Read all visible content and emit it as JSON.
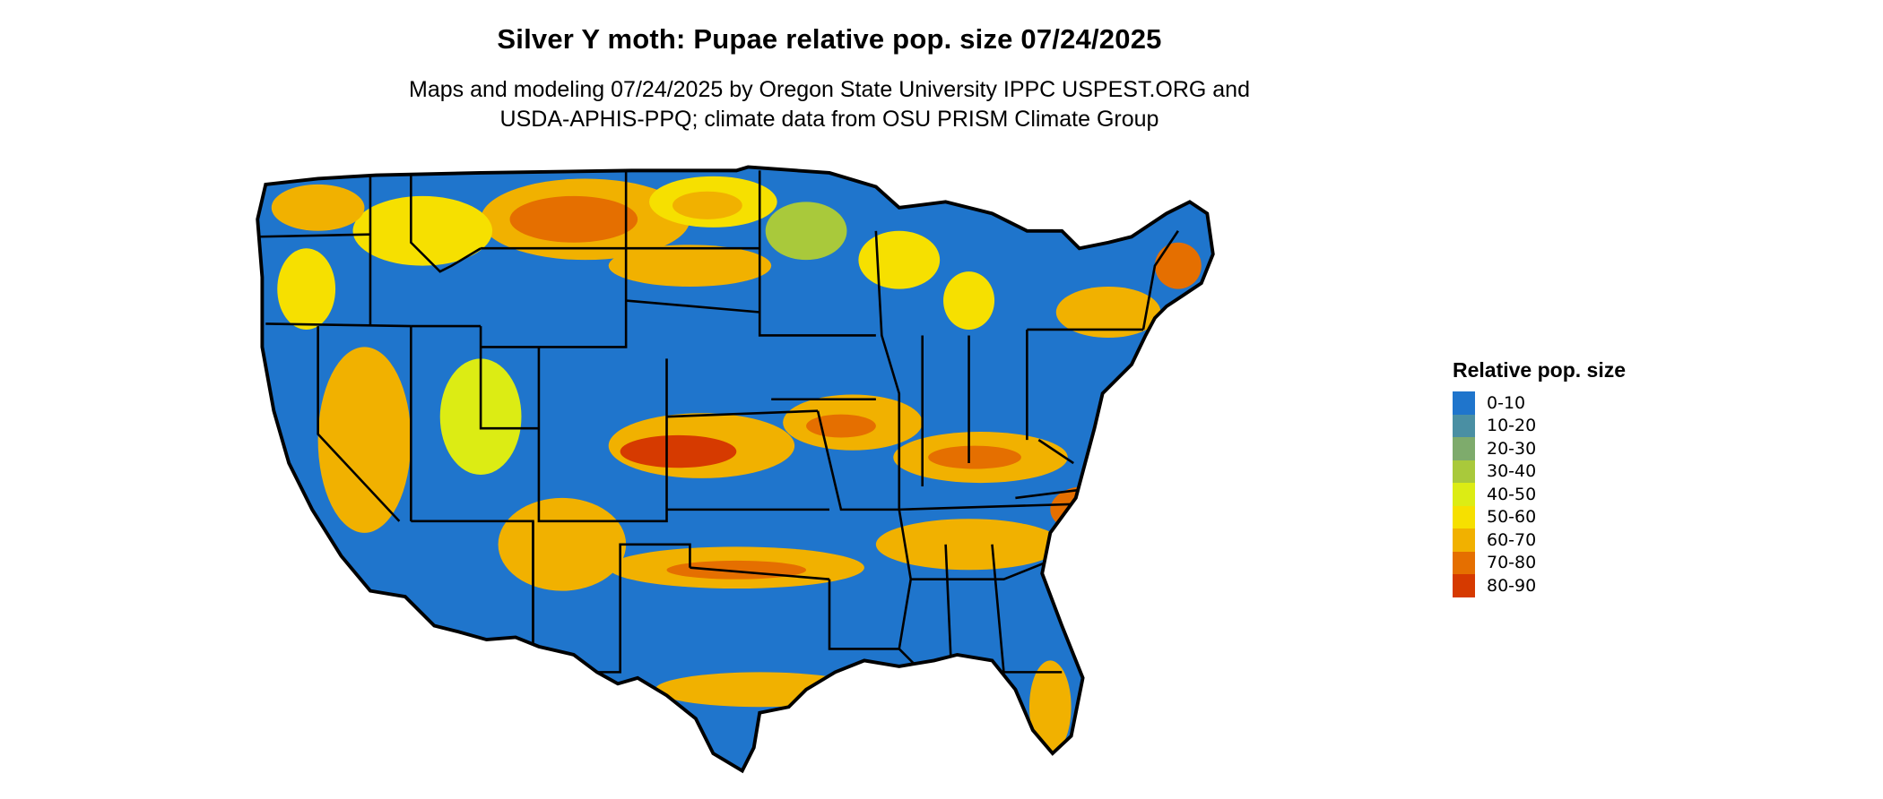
{
  "map": {
    "title": "Silver Y moth: Pupae relative pop. size 07/24/2025",
    "subtitle_line1": "Maps and modeling 07/24/2025 by Oregon State University IPPC USPEST.ORG and",
    "subtitle_line2": "USDA-APHIS-PPQ; climate data from OSU PRISM Climate Group",
    "region": "Contiguous United States with state boundaries",
    "dominant_class": "0-10",
    "state_border_color": "#000000"
  },
  "legend": {
    "title": "Relative pop. size",
    "items": [
      {
        "label": "0-10",
        "color": "#1f75cc"
      },
      {
        "label": "10-20",
        "color": "#4a8fa3"
      },
      {
        "label": "20-30",
        "color": "#7eab6c"
      },
      {
        "label": "30-40",
        "color": "#a9c93b"
      },
      {
        "label": "40-50",
        "color": "#dcec14"
      },
      {
        "label": "50-60",
        "color": "#f6e000"
      },
      {
        "label": "60-70",
        "color": "#f1b100"
      },
      {
        "label": "70-80",
        "color": "#e56f00"
      },
      {
        "label": "80-90",
        "color": "#d63a00"
      }
    ]
  }
}
